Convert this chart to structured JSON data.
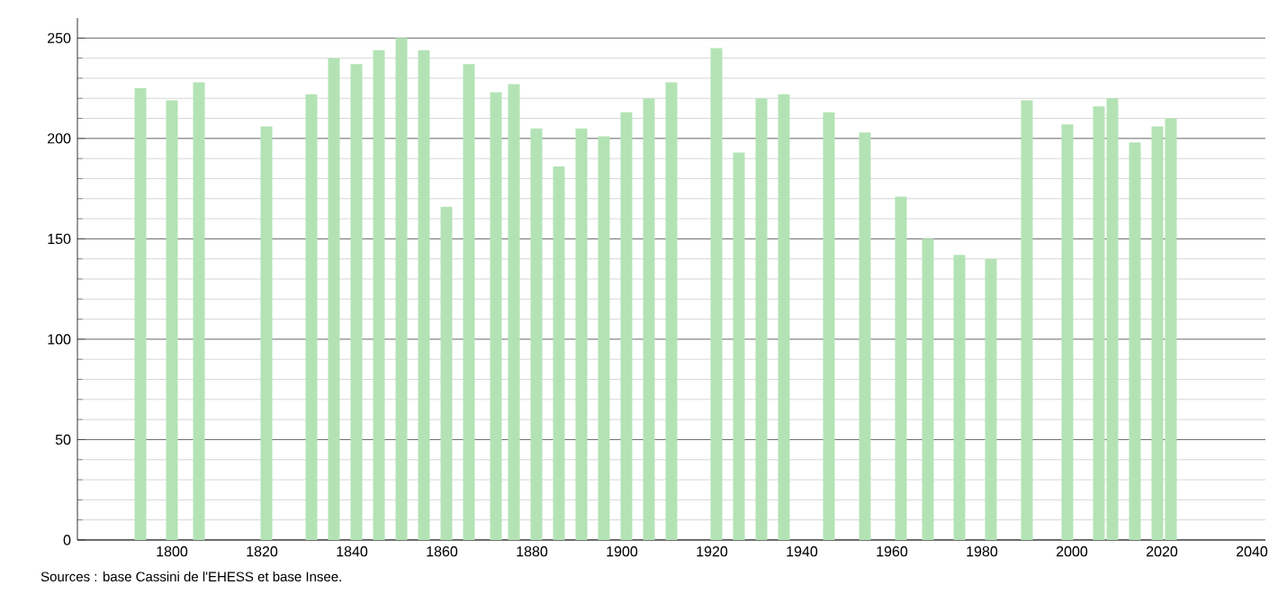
{
  "chart_data": {
    "type": "bar",
    "x": [
      1793,
      1800,
      1806,
      1821,
      1831,
      1836,
      1841,
      1846,
      1851,
      1856,
      1861,
      1866,
      1872,
      1876,
      1881,
      1886,
      1891,
      1896,
      1901,
      1906,
      1911,
      1921,
      1926,
      1931,
      1936,
      1946,
      1954,
      1962,
      1968,
      1975,
      1982,
      1990,
      1999,
      2006,
      2009,
      2014,
      2019,
      2022
    ],
    "values": [
      225,
      219,
      228,
      206,
      222,
      240,
      237,
      244,
      250,
      244,
      166,
      237,
      223,
      227,
      205,
      186,
      205,
      201,
      213,
      220,
      228,
      245,
      193,
      220,
      222,
      213,
      203,
      171,
      150,
      142,
      140,
      219,
      207,
      216,
      220,
      198,
      206,
      210
    ],
    "color": "#b3e3b5",
    "xlim": [
      1779,
      2043
    ],
    "ylim": [
      0,
      260
    ],
    "xticks": [
      1800,
      1820,
      1840,
      1860,
      1880,
      1900,
      1920,
      1940,
      1960,
      1980,
      2000,
      2020,
      2040
    ],
    "yticks": [
      0,
      50,
      100,
      150,
      200,
      250
    ],
    "grid": "y",
    "annotations": [
      "Sources : base Cassini de l'EHESS et base Insee."
    ]
  }
}
